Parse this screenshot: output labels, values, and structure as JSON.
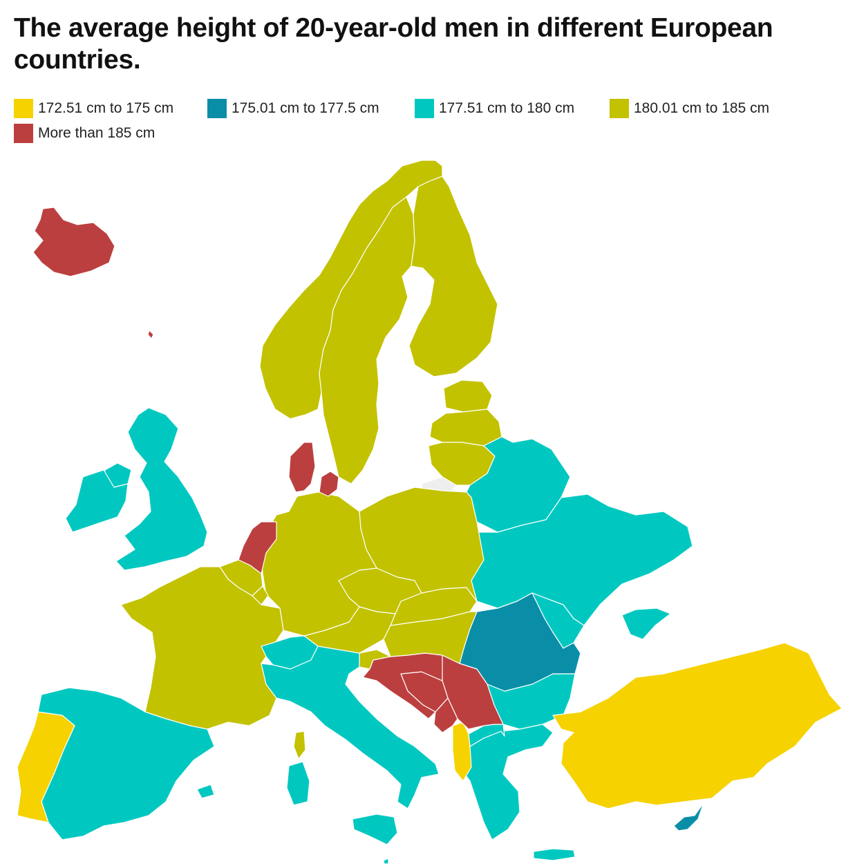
{
  "title": "The average height of 20-year-old men in different European countries.",
  "colors": {
    "bin_1": "#f5d200",
    "bin_2": "#0a8ea8",
    "bin_3": "#00c8c0",
    "bin_4": "#c2c200",
    "bin_5": "#bc3f3f",
    "no_data": "#eeeeee",
    "border": "#ffffff"
  },
  "legend": {
    "items": [
      {
        "label": "172.51 cm to 175 cm",
        "color": "#f5d200"
      },
      {
        "label": "175.01 cm to 177.5 cm",
        "color": "#0a8ea8"
      },
      {
        "label": "177.51 cm to 180 cm",
        "color": "#00c8c0"
      },
      {
        "label": "180.01 cm to 185 cm",
        "color": "#c2c200"
      },
      {
        "label": "More than 185 cm",
        "color": "#bc3f3f"
      }
    ]
  },
  "map_data": {
    "type": "choropleth",
    "region": "Europe",
    "classes": [
      {
        "label": "172.51 cm to 175 cm",
        "countries": [
          "Portugal",
          "Turkey",
          "Albania"
        ]
      },
      {
        "label": "175.01 cm to 177.5 cm",
        "countries": [
          "Romania",
          "Cyprus"
        ]
      },
      {
        "label": "177.51 cm to 180 cm",
        "countries": [
          "Ireland",
          "United Kingdom",
          "Spain",
          "Italy",
          "Switzerland",
          "Greece",
          "Bulgaria",
          "North Macedonia",
          "Moldova",
          "Ukraine",
          "Belarus",
          "Malta"
        ]
      },
      {
        "label": "180.01 cm to 185 cm",
        "countries": [
          "Norway",
          "Sweden",
          "Finland",
          "Estonia",
          "Latvia",
          "Lithuania",
          "Poland",
          "Germany",
          "France",
          "Belgium",
          "Luxembourg",
          "Austria",
          "Czech Republic",
          "Slovakia",
          "Hungary",
          "Slovenia"
        ]
      },
      {
        "label": "More than 185 cm",
        "countries": [
          "Iceland",
          "Netherlands",
          "Denmark",
          "Croatia",
          "Bosnia and Herzegovina",
          "Serbia",
          "Montenegro"
        ]
      }
    ]
  }
}
